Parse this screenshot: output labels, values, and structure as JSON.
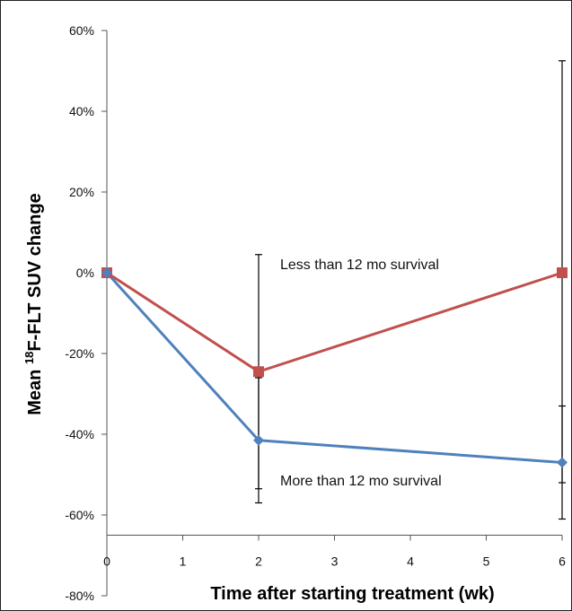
{
  "chart_data": {
    "type": "line",
    "title": "",
    "xlabel": "Time after starting treatment (wk)",
    "ylabel_prefix": "Mean ",
    "ylabel_sup": "18",
    "ylabel_suffix": "F-FLT SUV change",
    "xlim": [
      0,
      6
    ],
    "ylim": [
      -80,
      60
    ],
    "x_ticks": [
      "0",
      "1",
      "2",
      "3",
      "4",
      "5",
      "6"
    ],
    "y_ticks": [
      "60%",
      "40%",
      "20%",
      "0%",
      "-20%",
      "-40%",
      "-60%",
      "-80%"
    ],
    "y_tick_values": [
      60,
      40,
      20,
      0,
      -20,
      -40,
      -60,
      -80
    ],
    "x_axis_crosses_at": -65,
    "grid": false,
    "legend": "none",
    "series": [
      {
        "name": "Less than 12 mo survival",
        "color": "#c0504d",
        "marker": "square",
        "x": [
          0,
          2,
          6
        ],
        "y": [
          0,
          -24.5,
          0
        ],
        "err_low": [
          0,
          -53.5,
          -52
        ],
        "err_high": [
          0,
          4.5,
          52.5
        ]
      },
      {
        "name": "More than 12 mo survival",
        "color": "#4f81bd",
        "marker": "diamond",
        "x": [
          0,
          2,
          6
        ],
        "y": [
          0,
          -41.5,
          -47
        ],
        "err_low": [
          0,
          -57,
          -61
        ],
        "err_high": [
          0,
          -26,
          -33
        ]
      }
    ],
    "annotations": [
      {
        "text": "Less than 12 mo survival",
        "series": 0
      },
      {
        "text": "More than 12 mo survival",
        "series": 1
      }
    ]
  }
}
